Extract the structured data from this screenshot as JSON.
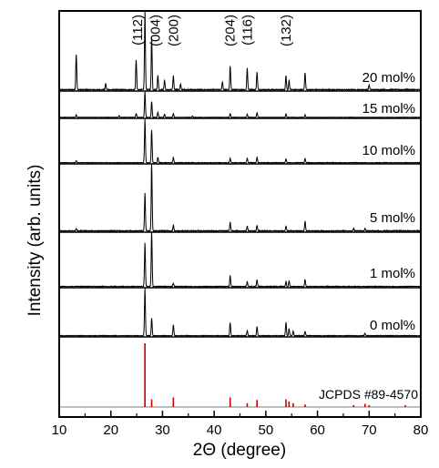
{
  "chart_data": {
    "type": "line",
    "title": "",
    "xlabel": "2Θ (degree)",
    "ylabel": "Intensity (arb. units)",
    "xlim": [
      10,
      80
    ],
    "xticks": [
      "10",
      "20",
      "30",
      "40",
      "50",
      "60",
      "70",
      "80"
    ],
    "yticks": "none",
    "grid": false,
    "legend": "none",
    "panels_top_to_bottom": [
      "20 mol%",
      "15 mol%",
      "10 mol%",
      "5 mol%",
      "1 mol%",
      "0 mol%",
      "JCPDS #89-4570"
    ],
    "peak_labels": [
      {
        "label": "(112)",
        "x": 26.6
      },
      {
        "label": "(004)",
        "x": 27.9
      },
      {
        "label": "(200)",
        "x": 32.1
      },
      {
        "label": "(204)",
        "x": 43.1
      },
      {
        "label": "(116)",
        "x": 46.4
      },
      {
        "label": "(132)",
        "x": 53.9
      }
    ],
    "series": [
      {
        "name": "20 mol%",
        "color": "#000000",
        "peaks": [
          [
            13.3,
            0.45
          ],
          [
            19.0,
            0.08
          ],
          [
            24.9,
            0.38
          ],
          [
            26.6,
            1.0
          ],
          [
            27.9,
            0.68
          ],
          [
            29.1,
            0.18
          ],
          [
            30.4,
            0.12
          ],
          [
            32.1,
            0.18
          ],
          [
            33.5,
            0.07
          ],
          [
            41.6,
            0.1
          ],
          [
            43.1,
            0.3
          ],
          [
            46.4,
            0.28
          ],
          [
            48.3,
            0.22
          ],
          [
            53.9,
            0.18
          ],
          [
            54.5,
            0.12
          ],
          [
            57.6,
            0.22
          ],
          [
            70.0,
            0.06
          ]
        ]
      },
      {
        "name": "15 mol%",
        "color": "#000000",
        "peaks": [
          [
            13.3,
            0.1
          ],
          [
            21.6,
            0.07
          ],
          [
            24.9,
            0.15
          ],
          [
            26.6,
            1.0
          ],
          [
            27.9,
            0.62
          ],
          [
            29.1,
            0.2
          ],
          [
            30.4,
            0.12
          ],
          [
            32.1,
            0.15
          ],
          [
            35.8,
            0.05
          ],
          [
            43.1,
            0.15
          ],
          [
            46.4,
            0.12
          ],
          [
            48.3,
            0.18
          ],
          [
            53.9,
            0.13
          ],
          [
            57.6,
            0.1
          ]
        ]
      },
      {
        "name": "10 mol%",
        "color": "#000000",
        "peaks": [
          [
            13.3,
            0.05
          ],
          [
            26.6,
            1.0
          ],
          [
            27.9,
            0.75
          ],
          [
            29.1,
            0.12
          ],
          [
            32.1,
            0.12
          ],
          [
            43.1,
            0.1
          ],
          [
            46.4,
            0.1
          ],
          [
            48.3,
            0.12
          ],
          [
            53.9,
            0.08
          ],
          [
            57.6,
            0.1
          ]
        ]
      },
      {
        "name": "5 mol%",
        "color": "#000000",
        "peaks": [
          [
            13.3,
            0.03
          ],
          [
            26.6,
            0.56
          ],
          [
            27.9,
            1.0
          ],
          [
            32.1,
            0.09
          ],
          [
            43.1,
            0.13
          ],
          [
            46.4,
            0.07
          ],
          [
            48.3,
            0.08
          ],
          [
            53.9,
            0.07
          ],
          [
            57.6,
            0.15
          ],
          [
            67.0,
            0.04
          ],
          [
            69.2,
            0.04
          ]
        ]
      },
      {
        "name": "1 mol%",
        "color": "#000000",
        "peaks": [
          [
            26.6,
            0.8
          ],
          [
            27.9,
            1.0
          ],
          [
            32.1,
            0.06
          ],
          [
            43.1,
            0.2
          ],
          [
            46.4,
            0.09
          ],
          [
            48.3,
            0.12
          ],
          [
            53.9,
            0.09
          ],
          [
            54.5,
            0.1
          ],
          [
            57.6,
            0.13
          ]
        ]
      },
      {
        "name": "0 mol%",
        "color": "#000000",
        "peaks": [
          [
            26.6,
            1.0
          ],
          [
            27.9,
            0.37
          ],
          [
            32.1,
            0.23
          ],
          [
            43.1,
            0.28
          ],
          [
            46.4,
            0.11
          ],
          [
            48.3,
            0.19
          ],
          [
            53.9,
            0.28
          ],
          [
            54.5,
            0.15
          ],
          [
            55.3,
            0.09
          ],
          [
            57.6,
            0.09
          ],
          [
            69.2,
            0.05
          ]
        ]
      }
    ],
    "reference": {
      "name": "JCPDS #89-4570",
      "color": "#cc0000",
      "type": "stick",
      "sticks": [
        [
          26.6,
          1.0
        ],
        [
          27.9,
          0.12
        ],
        [
          32.1,
          0.15
        ],
        [
          43.1,
          0.15
        ],
        [
          46.4,
          0.06
        ],
        [
          48.3,
          0.11
        ],
        [
          53.9,
          0.12
        ],
        [
          54.5,
          0.09
        ],
        [
          55.3,
          0.06
        ],
        [
          57.6,
          0.04
        ],
        [
          67.0,
          0.03
        ],
        [
          69.2,
          0.05
        ],
        [
          70.0,
          0.03
        ],
        [
          77.0,
          0.03
        ]
      ]
    }
  }
}
